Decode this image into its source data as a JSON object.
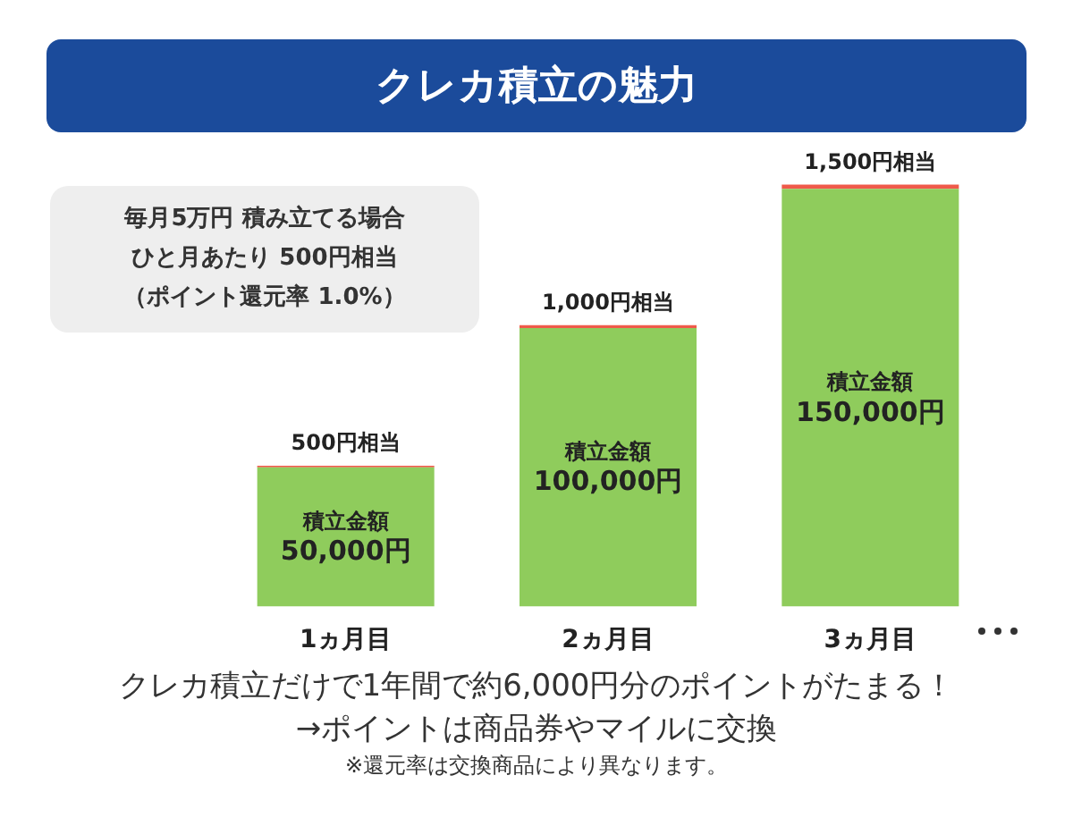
{
  "chart_data": {
    "type": "bar",
    "title": "クレカ積立の魅力",
    "stacked": true,
    "categories": [
      "1ヵ月目",
      "2ヵ月目",
      "3ヵ月目"
    ],
    "series": [
      {
        "color": "#8fcc5c",
        "values": [
          50000,
          100000,
          150000
        ],
        "value_labels": [
          "積立金額\n50,000円",
          "積立金額\n100,000円",
          "積立金額\n150,000円"
        ]
      },
      {
        "color": "#ef5a4a",
        "values": [
          500,
          1000,
          1500
        ],
        "value_labels": [
          "500円相当",
          "1,000円相当",
          "1,500円相当"
        ]
      }
    ],
    "annotations": [
      "毎月5万円 積み立てる場合",
      "ひと月あたり 500円相当",
      "（ポイント還元率 1.0%）",
      "クレカ積立だけで1年間で約6,000円分のポイントがたまる！",
      "→ポイントは商品券やマイルに交換",
      "※還元率は交換商品により異なります。"
    ],
    "grid": false,
    "legend": false
  }
}
